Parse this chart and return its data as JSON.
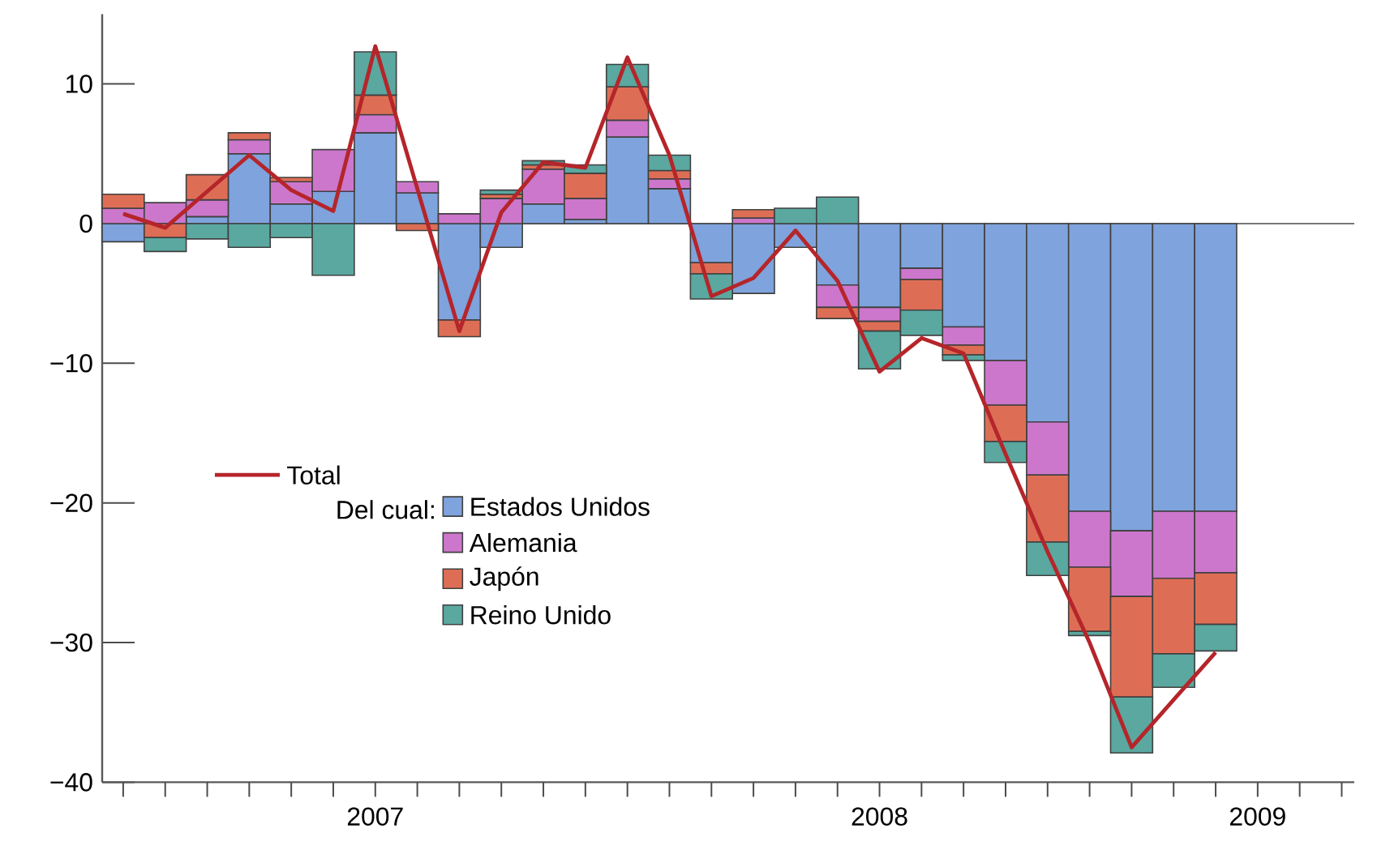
{
  "chart_data": {
    "type": "bar",
    "stacked": true,
    "categories": [
      null,
      null,
      null,
      null,
      null,
      null,
      "2007",
      null,
      null,
      null,
      null,
      null,
      null,
      null,
      null,
      null,
      null,
      null,
      "2008",
      null,
      null,
      null,
      null,
      null,
      null,
      null,
      null,
      "2009",
      null,
      null
    ],
    "series": [
      {
        "name": "Estados Unidos",
        "color": "#7fa3dc",
        "values": [
          -1.3,
          0,
          0.5,
          5.0,
          1.4,
          2.3,
          6.5,
          2.2,
          -6.9,
          -1.7,
          1.4,
          0.3,
          6.2,
          2.5,
          -2.8,
          -5.0,
          -1.7,
          -4.4,
          -6.0,
          -3.2,
          -7.4,
          -9.8,
          -14.2,
          -20.6,
          -22.0,
          -20.6,
          -20.6,
          null,
          null,
          null
        ]
      },
      {
        "name": "Alemania",
        "color": "#cc77cc",
        "values": [
          1.1,
          1.5,
          1.2,
          1.0,
          1.6,
          3.0,
          1.3,
          0.8,
          0.7,
          1.8,
          2.5,
          1.5,
          1.2,
          0.7,
          0,
          0.4,
          0,
          -1.6,
          -1.0,
          -0.8,
          -1.3,
          -3.2,
          -3.8,
          -4.0,
          -4.7,
          -4.8,
          -4.4,
          null,
          null,
          null
        ]
      },
      {
        "name": "Japón",
        "color": "#dd6e55",
        "values": [
          1.0,
          -1.0,
          1.8,
          0.5,
          0.3,
          0,
          1.4,
          -0.5,
          -1.2,
          0.3,
          0.3,
          1.8,
          2.4,
          0.6,
          -0.8,
          0.6,
          0,
          -0.8,
          -0.7,
          -2.2,
          -0.7,
          -2.6,
          -4.8,
          -4.6,
          -7.2,
          -5.4,
          -3.7,
          null,
          null,
          null
        ]
      },
      {
        "name": "Reino Unido",
        "color": "#5aa8a0",
        "values": [
          0,
          -1.0,
          -1.1,
          -1.7,
          -1.0,
          -3.7,
          3.1,
          0,
          0,
          0.3,
          0.3,
          0.6,
          1.6,
          1.1,
          -1.8,
          0,
          1.1,
          1.9,
          -2.7,
          -1.8,
          -0.4,
          -1.5,
          -2.4,
          -0.3,
          -4.0,
          -2.4,
          -1.9,
          null,
          null,
          null
        ]
      },
      {
        "name": "Total",
        "type": "line",
        "color": "#b5252a",
        "values": [
          0.7,
          -0.3,
          2.3,
          4.9,
          2.4,
          0.9,
          12.7,
          2.5,
          -7.7,
          0.8,
          4.4,
          4.0,
          11.9,
          4.9,
          -5.2,
          -3.9,
          -0.5,
          -4.1,
          -10.6,
          -8.2,
          -9.3,
          -16.5,
          -23.5,
          -30.0,
          -37.5,
          -34.1,
          -30.7,
          null,
          null,
          null
        ]
      }
    ],
    "legend_title": "Del cual:",
    "legend": "left",
    "ylim": [
      -40,
      15
    ],
    "yticks": [
      {
        "value": -40,
        "label": "−40"
      },
      {
        "value": -30,
        "label": "−30"
      },
      {
        "value": -20,
        "label": "−20"
      },
      {
        "value": -10,
        "label": "−10"
      },
      0,
      10
    ],
    "ref_lines": [
      {
        "axis": "y",
        "value": 0,
        "color": "#777777"
      }
    ],
    "marker": "none",
    "line_style": "solid"
  }
}
